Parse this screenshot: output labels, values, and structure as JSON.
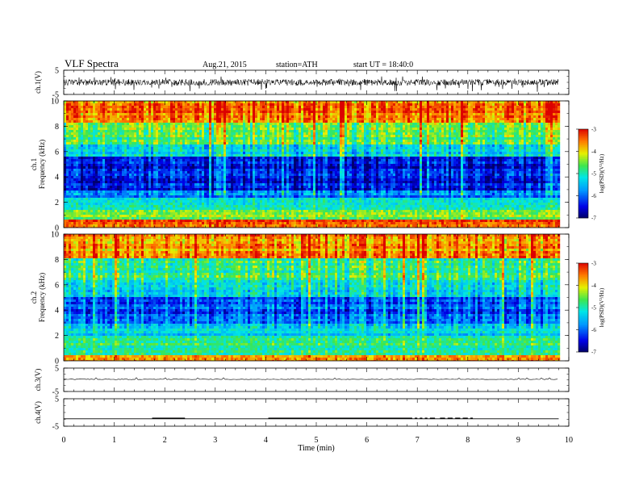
{
  "header": {
    "title": "VLF  Spectra",
    "date": "Aug.21, 2015",
    "station": "station=ATH",
    "start": "start  UT =   18:40:0"
  },
  "chart_data": [
    {
      "id": "ch1-waveform",
      "type": "line",
      "ylabel": "ch.1(V)",
      "ylim": [
        -5,
        5
      ],
      "yticks": [
        "5",
        "-5"
      ],
      "xlim": [
        0,
        10
      ],
      "data_extent_min": 9.8,
      "baseline": 0,
      "amplitude_note": "broadband noise around 0 V, spikes to about -4 V"
    },
    {
      "id": "ch1-spectrogram",
      "type": "heatmap",
      "ylabel": "ch.1\nFrequency  (kHz)",
      "ylim": [
        0,
        10
      ],
      "yticks": [
        "0",
        "2",
        "4",
        "6",
        "8",
        "10"
      ],
      "xlim": [
        0,
        10
      ],
      "data_extent_min": 9.8,
      "colorbar": {
        "label": "log(PSD)(V²/Hz)",
        "range": [
          -7,
          -3
        ],
        "ticks": [
          "-3",
          "-4",
          "-5",
          "-6",
          "-7"
        ]
      },
      "bands": [
        {
          "from": 0.0,
          "to": 0.6,
          "level": -3.4
        },
        {
          "from": 0.6,
          "to": 1.4,
          "level": -4.6
        },
        {
          "from": 1.4,
          "to": 2.4,
          "level": -5.1
        },
        {
          "from": 2.4,
          "to": 3.0,
          "level": -5.9
        },
        {
          "from": 3.0,
          "to": 5.6,
          "level": -6.5
        },
        {
          "from": 5.6,
          "to": 6.6,
          "level": -5.4
        },
        {
          "from": 6.6,
          "to": 8.2,
          "level": -4.7
        },
        {
          "from": 8.2,
          "to": 10.0,
          "level": -3.6
        }
      ]
    },
    {
      "id": "ch2-spectrogram",
      "type": "heatmap",
      "ylabel": "ch.2\nFrequency  (kHz)",
      "ylim": [
        0,
        10
      ],
      "yticks": [
        "0",
        "2",
        "4",
        "6",
        "8",
        "10"
      ],
      "xlim": [
        0,
        10
      ],
      "data_extent_min": 9.8,
      "colorbar": {
        "label": "log(PSD)(V²/Hz)",
        "range": [
          -7,
          -3
        ],
        "ticks": [
          "-3",
          "-4",
          "-5",
          "-6",
          "-7"
        ]
      },
      "bands": [
        {
          "from": 0.0,
          "to": 0.5,
          "level": -3.7
        },
        {
          "from": 0.5,
          "to": 2.0,
          "level": -4.9
        },
        {
          "from": 2.0,
          "to": 3.0,
          "level": -5.4
        },
        {
          "from": 3.0,
          "to": 5.0,
          "level": -6.1
        },
        {
          "from": 5.0,
          "to": 6.4,
          "level": -5.3
        },
        {
          "from": 6.4,
          "to": 8.0,
          "level": -4.8
        },
        {
          "from": 8.0,
          "to": 10.0,
          "level": -3.7
        }
      ]
    },
    {
      "id": "ch3-waveform",
      "type": "line",
      "ylabel": "ch.3(V)",
      "ylim": [
        -5,
        5
      ],
      "yticks": [
        "5",
        "-5"
      ],
      "xlim": [
        0,
        10
      ],
      "data_extent_min": 9.8,
      "baseline": 0.2
    },
    {
      "id": "ch4-waveform",
      "type": "line",
      "ylabel": "ch.4(V)",
      "ylim": [
        -5,
        5
      ],
      "yticks": [
        "5",
        "-5"
      ],
      "xlim": [
        0,
        10
      ],
      "data_extent_min": 9.8,
      "baseline": -2.3,
      "bursts": [
        [
          1.75,
          2.4
        ],
        [
          4.05,
          6.9
        ],
        [
          6.95,
          7.0
        ],
        [
          7.05,
          7.1
        ],
        [
          7.15,
          7.2
        ],
        [
          7.25,
          7.35
        ],
        [
          7.45,
          7.55
        ],
        [
          7.6,
          7.7
        ],
        [
          7.75,
          7.85
        ],
        [
          7.9,
          8.0
        ],
        [
          8.05,
          8.1
        ]
      ],
      "burst_level": -1.9
    }
  ],
  "xaxis": {
    "label": "Time  (min)",
    "ticks": [
      "0",
      "1",
      "2",
      "3",
      "4",
      "5",
      "6",
      "7",
      "8",
      "9",
      "10"
    ],
    "range": [
      0,
      10
    ]
  }
}
